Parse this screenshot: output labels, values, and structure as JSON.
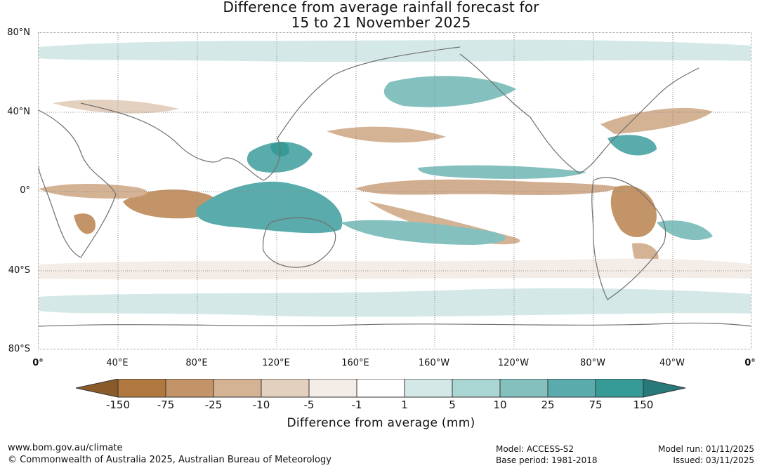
{
  "title": {
    "line1": "Difference from average rainfall forecast for",
    "line2": "15 to 21 November 2025"
  },
  "map": {
    "lat_labels": [
      "80°N",
      "40°N",
      "0°",
      "40°S",
      "80°S"
    ],
    "lon_labels": [
      "0°",
      "40°E",
      "80°E",
      "120°E",
      "160°E",
      "160°W",
      "120°W",
      "80°W",
      "40°W",
      "0°"
    ]
  },
  "legend": {
    "ticks": [
      "-150",
      "-75",
      "-25",
      "-10",
      "-5",
      "-1",
      "1",
      "5",
      "10",
      "25",
      "75",
      "150"
    ],
    "colors": [
      "#8b5a2b",
      "#b0783f",
      "#c39467",
      "#d4b294",
      "#e4d0bf",
      "#f4ece6",
      "#ffffff",
      "#d3e8e7",
      "#a9d5d3",
      "#84c0be",
      "#5aabab",
      "#369b97",
      "#28797a"
    ],
    "label": "Difference from average (mm)"
  },
  "footer": {
    "url": "www.bom.gov.au/climate",
    "copyright": "© Commonwealth of Australia 2025, Australian Bureau of Meteorology",
    "model": "Model: ACCESS-S2",
    "base_period": "Base period: 1981-2018",
    "model_run": "Model run: 01/11/2025",
    "issued": "Issued: 03/11/2025"
  }
}
